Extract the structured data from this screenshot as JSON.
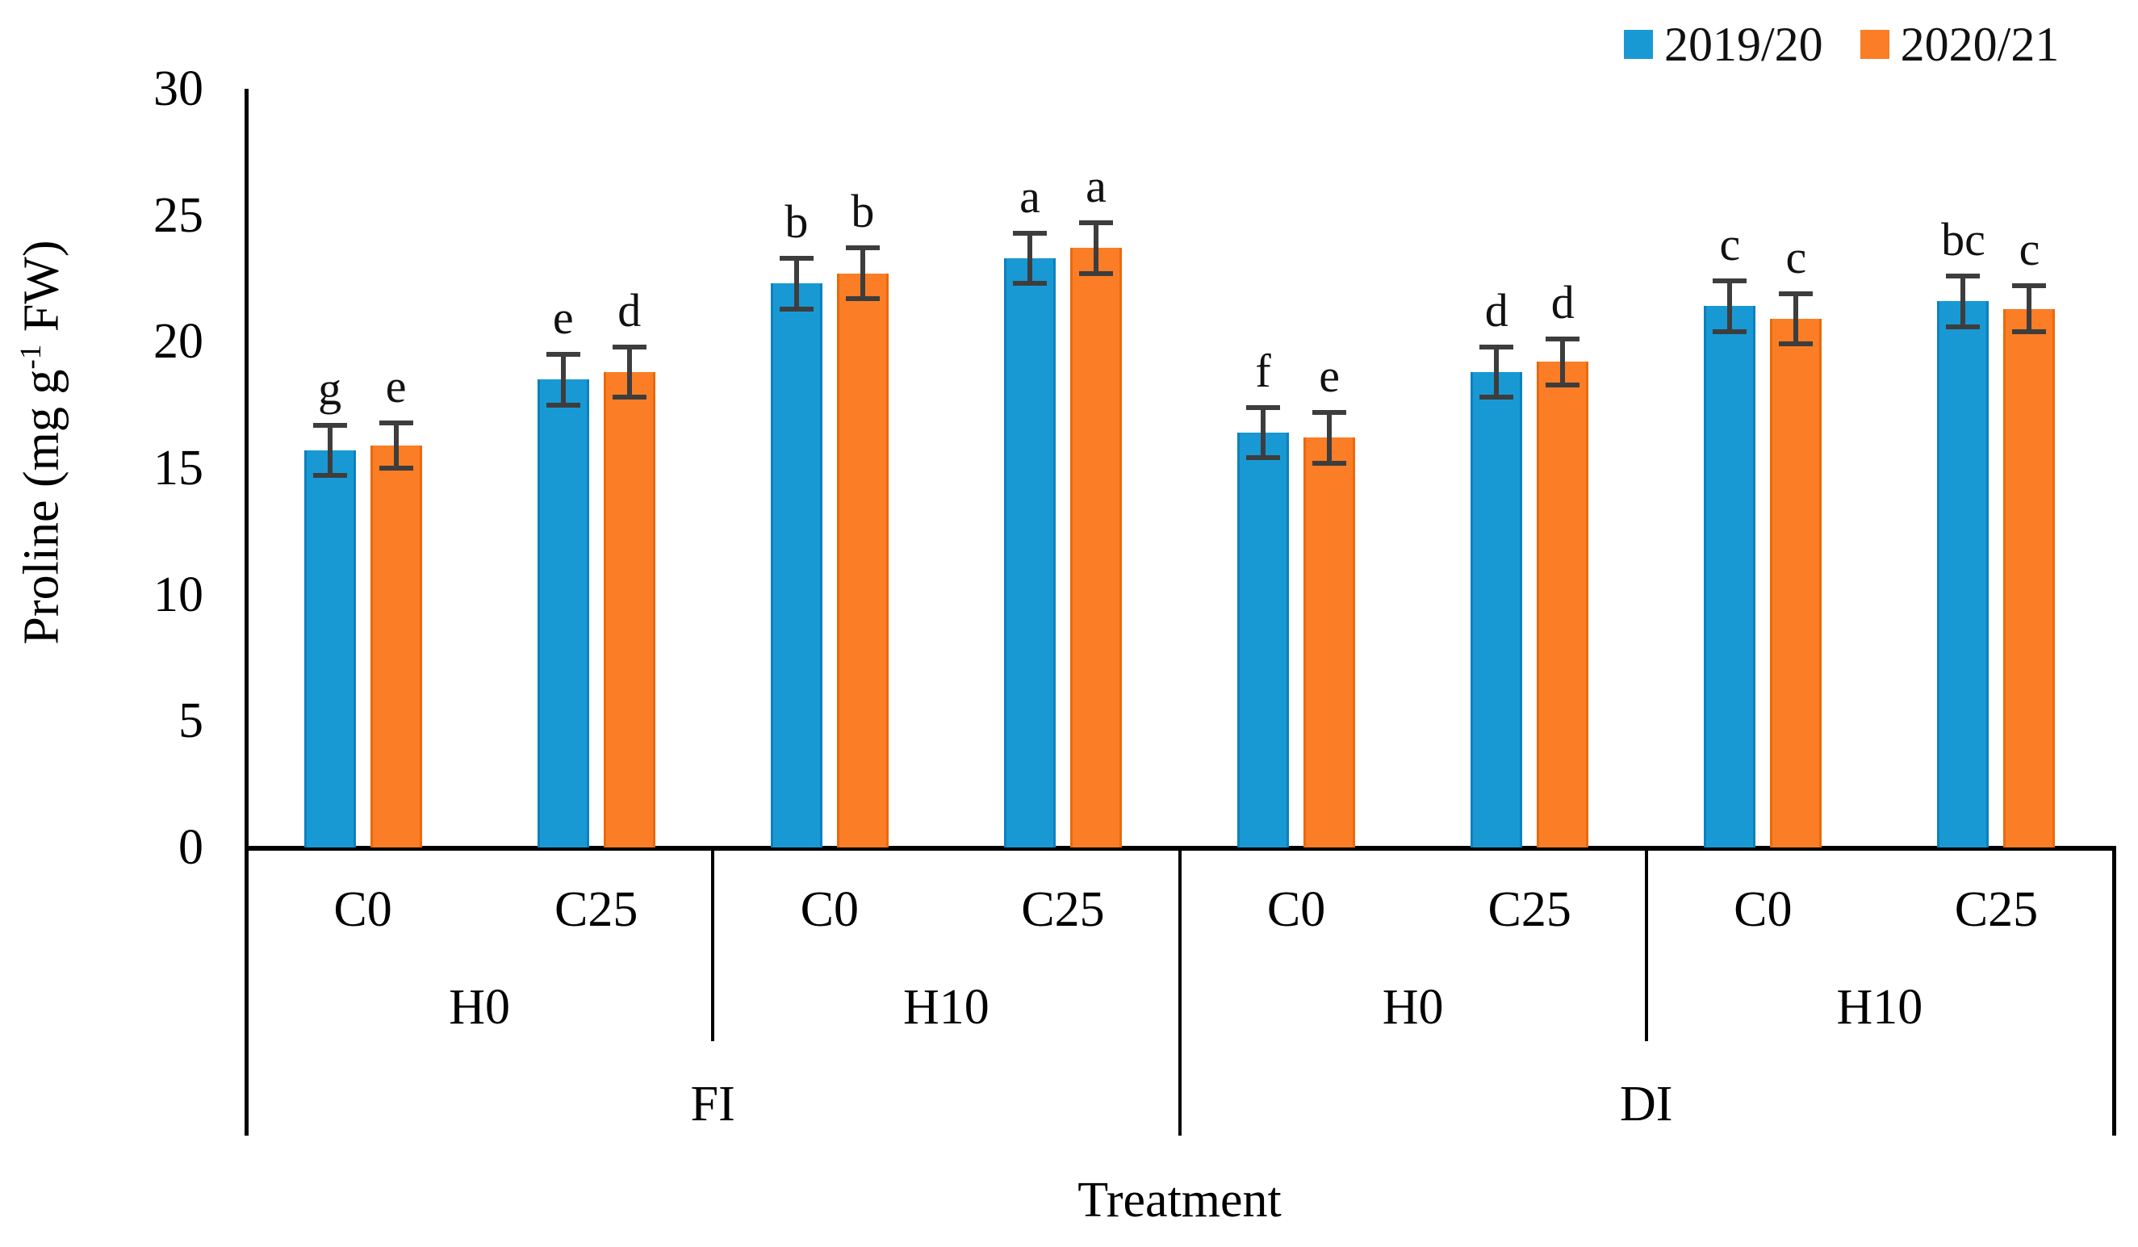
{
  "chart_data": {
    "type": "bar",
    "title": "",
    "xlabel": "Treatment",
    "ylabel": "Proline (mg g⁻¹ FW)",
    "ylabel_parts": {
      "prefix": "Proline (mg g",
      "superscript": "-1",
      "suffix": " FW)"
    },
    "ylim": [
      0,
      30
    ],
    "yticks": [
      "0",
      "5",
      "10",
      "15",
      "20",
      "25",
      "30"
    ],
    "ytick_values": [
      0,
      5,
      10,
      15,
      20,
      25,
      30
    ],
    "grid": false,
    "legend_position": "top-right",
    "categories": [
      "C0",
      "C25",
      "C0",
      "C25",
      "C0",
      "C25",
      "C0",
      "C25"
    ],
    "humic_groups": [
      {
        "label": "H0",
        "span": 2
      },
      {
        "label": "H10",
        "span": 2
      },
      {
        "label": "H0",
        "span": 2
      },
      {
        "label": "H10",
        "span": 2
      }
    ],
    "irrigation_groups": [
      {
        "label": "FI",
        "span": 4
      },
      {
        "label": "DI",
        "span": 4
      }
    ],
    "series": [
      {
        "name": "2019/20",
        "color": "#1899D4",
        "edge_color": "#0D81BD",
        "values": [
          15.7,
          18.5,
          22.3,
          23.3,
          16.4,
          18.8,
          21.4,
          21.6
        ],
        "errors": [
          1.0,
          1.0,
          1.0,
          1.0,
          1.0,
          1.0,
          1.0,
          1.0
        ],
        "sig_letters": [
          "g",
          "e",
          "b",
          "a",
          "f",
          "d",
          "c",
          "bc"
        ]
      },
      {
        "name": "2020/21",
        "color": "#FB7D26",
        "edge_color": "#E96A0C",
        "values": [
          15.9,
          18.8,
          22.7,
          23.7,
          16.2,
          19.2,
          20.9,
          21.3
        ],
        "errors": [
          0.9,
          1.0,
          1.0,
          1.0,
          1.0,
          0.9,
          1.0,
          0.9
        ],
        "sig_letters": [
          "e",
          "d",
          "b",
          "a",
          "e",
          "d",
          "c",
          "c"
        ]
      }
    ],
    "error_bar_color": "#3D3D3D",
    "axis_color": "#000000"
  }
}
